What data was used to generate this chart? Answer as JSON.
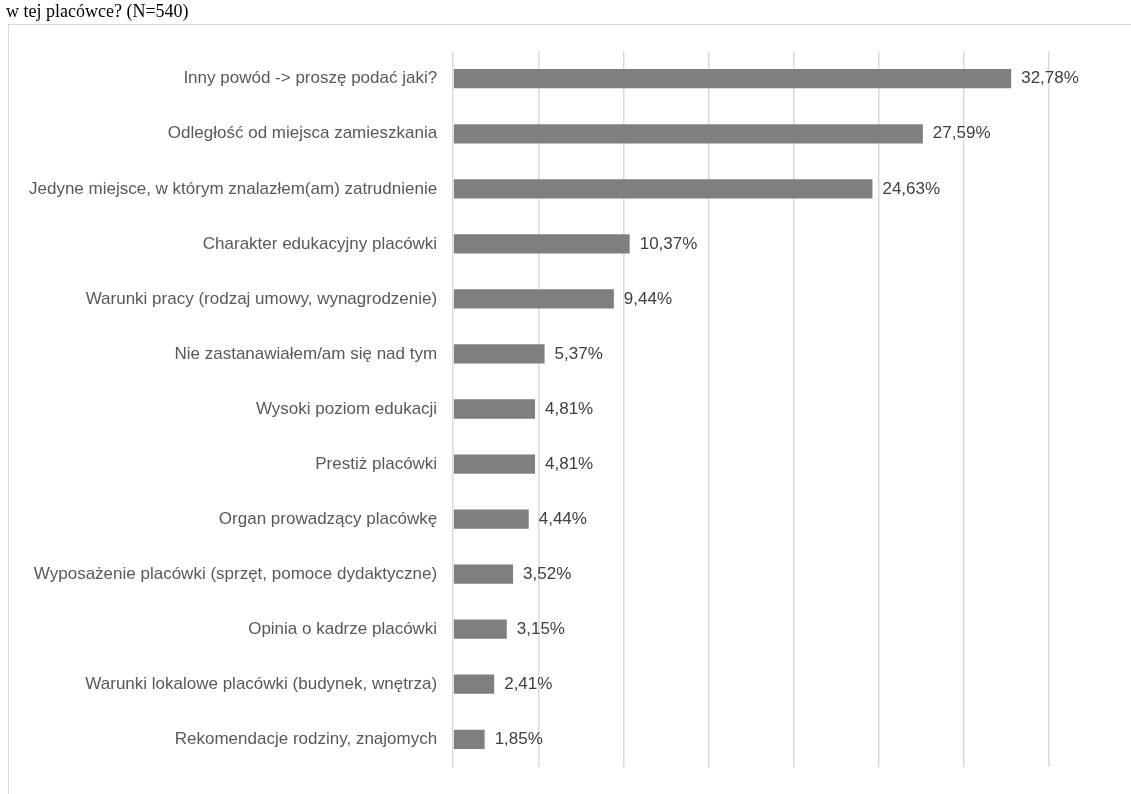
{
  "chart_data": {
    "type": "bar",
    "title": "w tej placówce? (N=540)",
    "orientation": "horizontal",
    "categories": [
      "Inny powód -> proszę podać jaki?",
      "Odległość od miejsca zamieszkania",
      "Jedyne miejsce, w którym znalazłem(am) zatrudnienie",
      "Charakter edukacyjny placówki",
      "Warunki pracy (rodzaj umowy, wynagrodzenie)",
      "Nie zastanawiałem/am się nad tym",
      "Wysoki poziom edukacji",
      "Prestiż placówki",
      "Organ prowadzący placówkę",
      "Wyposażenie placówki (sprzęt, pomoce dydaktyczne)",
      "Opinia o kadrze placówki",
      "Warunki lokalowe placówki (budynek, wnętrza)",
      "Rekomendacje rodziny, znajomych"
    ],
    "values": [
      32.78,
      27.59,
      24.63,
      10.37,
      9.44,
      5.37,
      4.81,
      4.81,
      4.44,
      3.52,
      3.15,
      2.41,
      1.85
    ],
    "value_labels": [
      "32,78%",
      "27,59%",
      "24,63%",
      "10,37%",
      "9,44%",
      "5,37%",
      "4,81%",
      "4,81%",
      "4,44%",
      "3,52%",
      "3,15%",
      "2,41%",
      "1,85%"
    ],
    "color": "#7f7f7f",
    "xlim": [
      0,
      35
    ],
    "xticks": [
      {
        "value": 0,
        "label": null
      },
      {
        "value": 5,
        "label": null
      },
      {
        "value": 10,
        "label": null
      },
      {
        "value": 15,
        "label": null
      },
      {
        "value": 20,
        "label": null
      },
      {
        "value": 25,
        "label": null
      },
      {
        "value": 30,
        "label": null
      },
      {
        "value": 35,
        "label": null
      }
    ],
    "grid": "x",
    "tick_labels": "y"
  }
}
